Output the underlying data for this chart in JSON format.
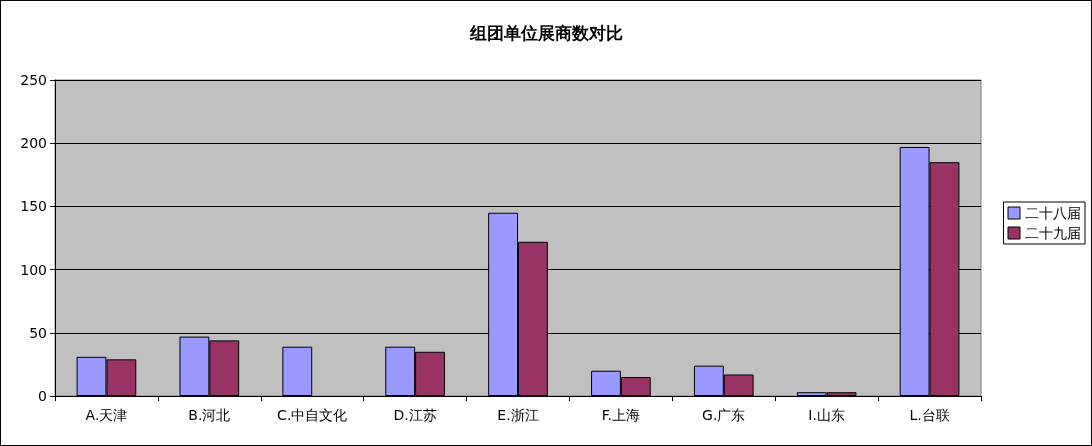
{
  "chart_data": {
    "type": "bar",
    "title": "组团单位展商数对比",
    "categories": [
      "A.天津",
      "B.河北",
      "C.中自文化",
      "D.江苏",
      "E.浙江",
      "F.上海",
      "G.广东",
      "I.山东",
      "L.台联"
    ],
    "series": [
      {
        "name": "二十八届",
        "color": "#9999ff",
        "values": [
          31,
          47,
          39,
          39,
          145,
          20,
          24,
          3,
          197
        ]
      },
      {
        "name": "二十九届",
        "color": "#993366",
        "values": [
          29,
          44,
          null,
          35,
          122,
          15,
          17,
          3,
          185
        ]
      }
    ],
    "ylim": [
      0,
      250
    ],
    "yticks": [
      0,
      50,
      100,
      150,
      200,
      250
    ],
    "grid": "y",
    "legend": "right"
  }
}
